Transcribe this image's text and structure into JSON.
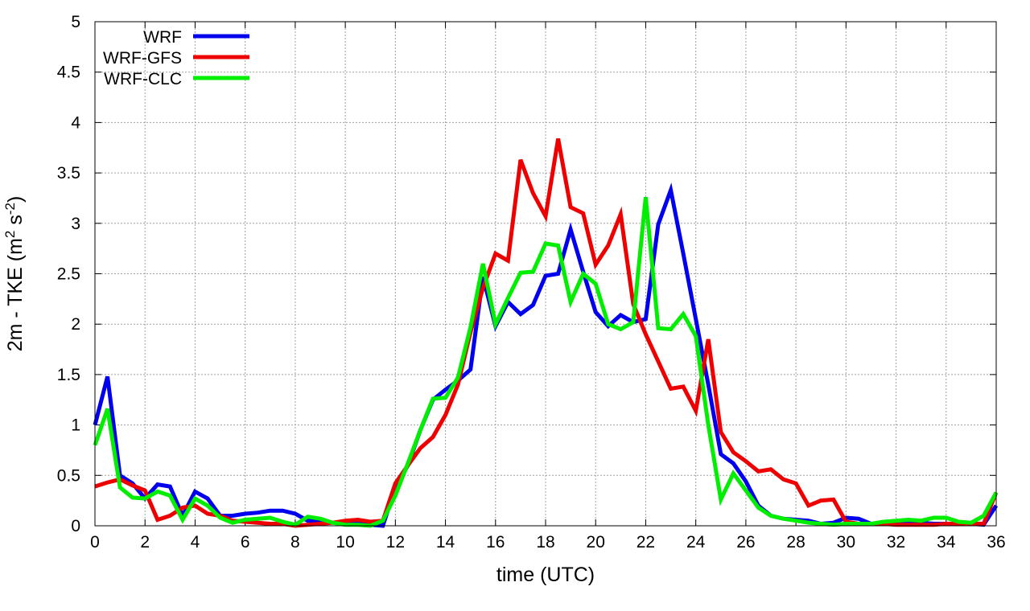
{
  "chart_data": {
    "type": "line",
    "title": "",
    "xlabel": "time (UTC)",
    "ylabel": {
      "prefix": "2m - TKE (m",
      "sup1": "2",
      "mid": " s",
      "sup2": "-2",
      "suffix": ")"
    },
    "xlim": [
      0,
      36
    ],
    "ylim": [
      0,
      5
    ],
    "xticks": [
      0,
      2,
      4,
      6,
      8,
      10,
      12,
      14,
      16,
      18,
      20,
      22,
      24,
      26,
      28,
      30,
      32,
      34,
      36
    ],
    "yticks": [
      0,
      0.5,
      1,
      1.5,
      2,
      2.5,
      3,
      3.5,
      4,
      4.5,
      5
    ],
    "ytick_labels": [
      "0",
      "0.5",
      "1",
      "1.5",
      "2",
      "2.5",
      "3",
      "3.5",
      "4",
      "4.5",
      "5"
    ],
    "grid": true,
    "legend_position": "top-left",
    "series": [
      {
        "name": "WRF",
        "color": "#0000ee",
        "x": [
          0,
          0.5,
          1,
          1.5,
          2,
          2.5,
          3,
          3.5,
          4,
          4.5,
          5,
          5.5,
          6,
          6.5,
          7,
          7.5,
          8,
          8.5,
          9,
          9.5,
          10,
          10.5,
          11,
          11.5,
          12,
          12.5,
          13,
          13.5,
          14,
          14.5,
          15,
          15.5,
          16,
          16.5,
          17,
          17.5,
          18,
          18.5,
          19,
          19.5,
          20,
          20.5,
          21,
          21.5,
          22,
          22.5,
          23,
          23.5,
          24,
          24.5,
          25,
          25.5,
          26,
          26.5,
          27,
          27.5,
          28,
          28.5,
          29,
          29.5,
          30,
          30.5,
          31,
          31.5,
          32,
          32.5,
          33,
          33.5,
          34,
          34.5,
          35,
          35.5,
          36
        ],
        "values": [
          1.0,
          1.48,
          0.5,
          0.42,
          0.27,
          0.41,
          0.39,
          0.1,
          0.34,
          0.27,
          0.1,
          0.1,
          0.12,
          0.13,
          0.15,
          0.15,
          0.12,
          0.05,
          0.05,
          0.03,
          0.02,
          0.02,
          0.01,
          0.0,
          0.38,
          0.6,
          0.95,
          1.25,
          1.35,
          1.44,
          1.55,
          2.47,
          1.98,
          2.22,
          2.1,
          2.19,
          2.48,
          2.5,
          2.94,
          2.52,
          2.12,
          1.98,
          2.09,
          2.02,
          2.05,
          2.99,
          3.33,
          2.7,
          2.05,
          1.4,
          0.71,
          0.62,
          0.44,
          0.2,
          0.1,
          0.07,
          0.06,
          0.05,
          0.02,
          0.03,
          0.08,
          0.07,
          0.02,
          0.02,
          0.03,
          0.04,
          0.03,
          0.02,
          0.02,
          0.02,
          0.02,
          0.01,
          0.2
        ]
      },
      {
        "name": "WRF-GFS",
        "color": "#ee0000",
        "x": [
          0,
          0.5,
          1,
          1.5,
          2,
          2.5,
          3,
          3.5,
          4,
          4.5,
          5,
          5.5,
          6,
          6.5,
          7,
          7.5,
          8,
          8.5,
          9,
          9.5,
          10,
          10.5,
          11,
          11.5,
          12,
          12.5,
          13,
          13.5,
          14,
          14.5,
          15,
          15.5,
          16,
          16.5,
          17,
          17.5,
          18,
          18.5,
          19,
          19.5,
          20,
          20.5,
          21,
          21.5,
          22,
          22.5,
          23,
          23.5,
          24,
          24.5,
          25,
          25.5,
          26,
          26.5,
          27,
          27.5,
          28,
          28.5,
          29,
          29.5,
          30,
          30.5,
          31,
          31.5,
          32,
          32.5,
          33,
          33.5,
          34,
          34.5,
          35,
          35.5,
          36
        ],
        "values": [
          0.39,
          0.43,
          0.46,
          0.4,
          0.35,
          0.06,
          0.1,
          0.18,
          0.2,
          0.12,
          0.1,
          0.05,
          0.04,
          0.03,
          0.02,
          0.02,
          0.0,
          0.01,
          0.02,
          0.03,
          0.05,
          0.06,
          0.04,
          0.05,
          0.42,
          0.6,
          0.77,
          0.88,
          1.1,
          1.4,
          1.92,
          2.36,
          2.7,
          2.63,
          3.63,
          3.3,
          3.07,
          3.84,
          3.16,
          3.1,
          2.59,
          2.78,
          3.09,
          2.2,
          1.9,
          1.63,
          1.36,
          1.38,
          1.14,
          1.85,
          0.93,
          0.73,
          0.64,
          0.54,
          0.56,
          0.46,
          0.42,
          0.2,
          0.25,
          0.26,
          0.04,
          0.02,
          0.02,
          0.02,
          0.01,
          0.01,
          0.01,
          0.01,
          0.02,
          0.02,
          0.02,
          0.02,
          0.33
        ]
      },
      {
        "name": "WRF-CLC",
        "color": "#00ee00",
        "x": [
          0,
          0.5,
          1,
          1.5,
          2,
          2.5,
          3,
          3.5,
          4,
          4.5,
          5,
          5.5,
          6,
          6.5,
          7,
          7.5,
          8,
          8.5,
          9,
          9.5,
          10,
          10.5,
          11,
          11.5,
          12,
          12.5,
          13,
          13.5,
          14,
          14.5,
          15,
          15.5,
          16,
          16.5,
          17,
          17.5,
          18,
          18.5,
          19,
          19.5,
          20,
          20.5,
          21,
          21.5,
          22,
          22.5,
          23,
          23.5,
          24,
          24.5,
          25,
          25.5,
          26,
          26.5,
          27,
          27.5,
          28,
          28.5,
          29,
          29.5,
          30,
          30.5,
          31,
          31.5,
          32,
          32.5,
          33,
          33.5,
          34,
          34.5,
          35,
          35.5,
          36
        ],
        "values": [
          0.8,
          1.16,
          0.38,
          0.28,
          0.27,
          0.34,
          0.3,
          0.06,
          0.27,
          0.2,
          0.08,
          0.03,
          0.06,
          0.07,
          0.08,
          0.04,
          0.01,
          0.09,
          0.07,
          0.03,
          0.01,
          0.01,
          0.0,
          0.05,
          0.3,
          0.62,
          0.95,
          1.26,
          1.27,
          1.47,
          1.97,
          2.6,
          2.0,
          2.26,
          2.51,
          2.52,
          2.8,
          2.78,
          2.22,
          2.5,
          2.4,
          2.0,
          1.95,
          2.02,
          3.26,
          1.96,
          1.95,
          2.1,
          1.88,
          1.0,
          0.26,
          0.52,
          0.35,
          0.18,
          0.1,
          0.07,
          0.05,
          0.03,
          0.02,
          0.01,
          0.02,
          0.02,
          0.02,
          0.04,
          0.05,
          0.06,
          0.05,
          0.08,
          0.08,
          0.04,
          0.03,
          0.1,
          0.33
        ]
      }
    ]
  }
}
